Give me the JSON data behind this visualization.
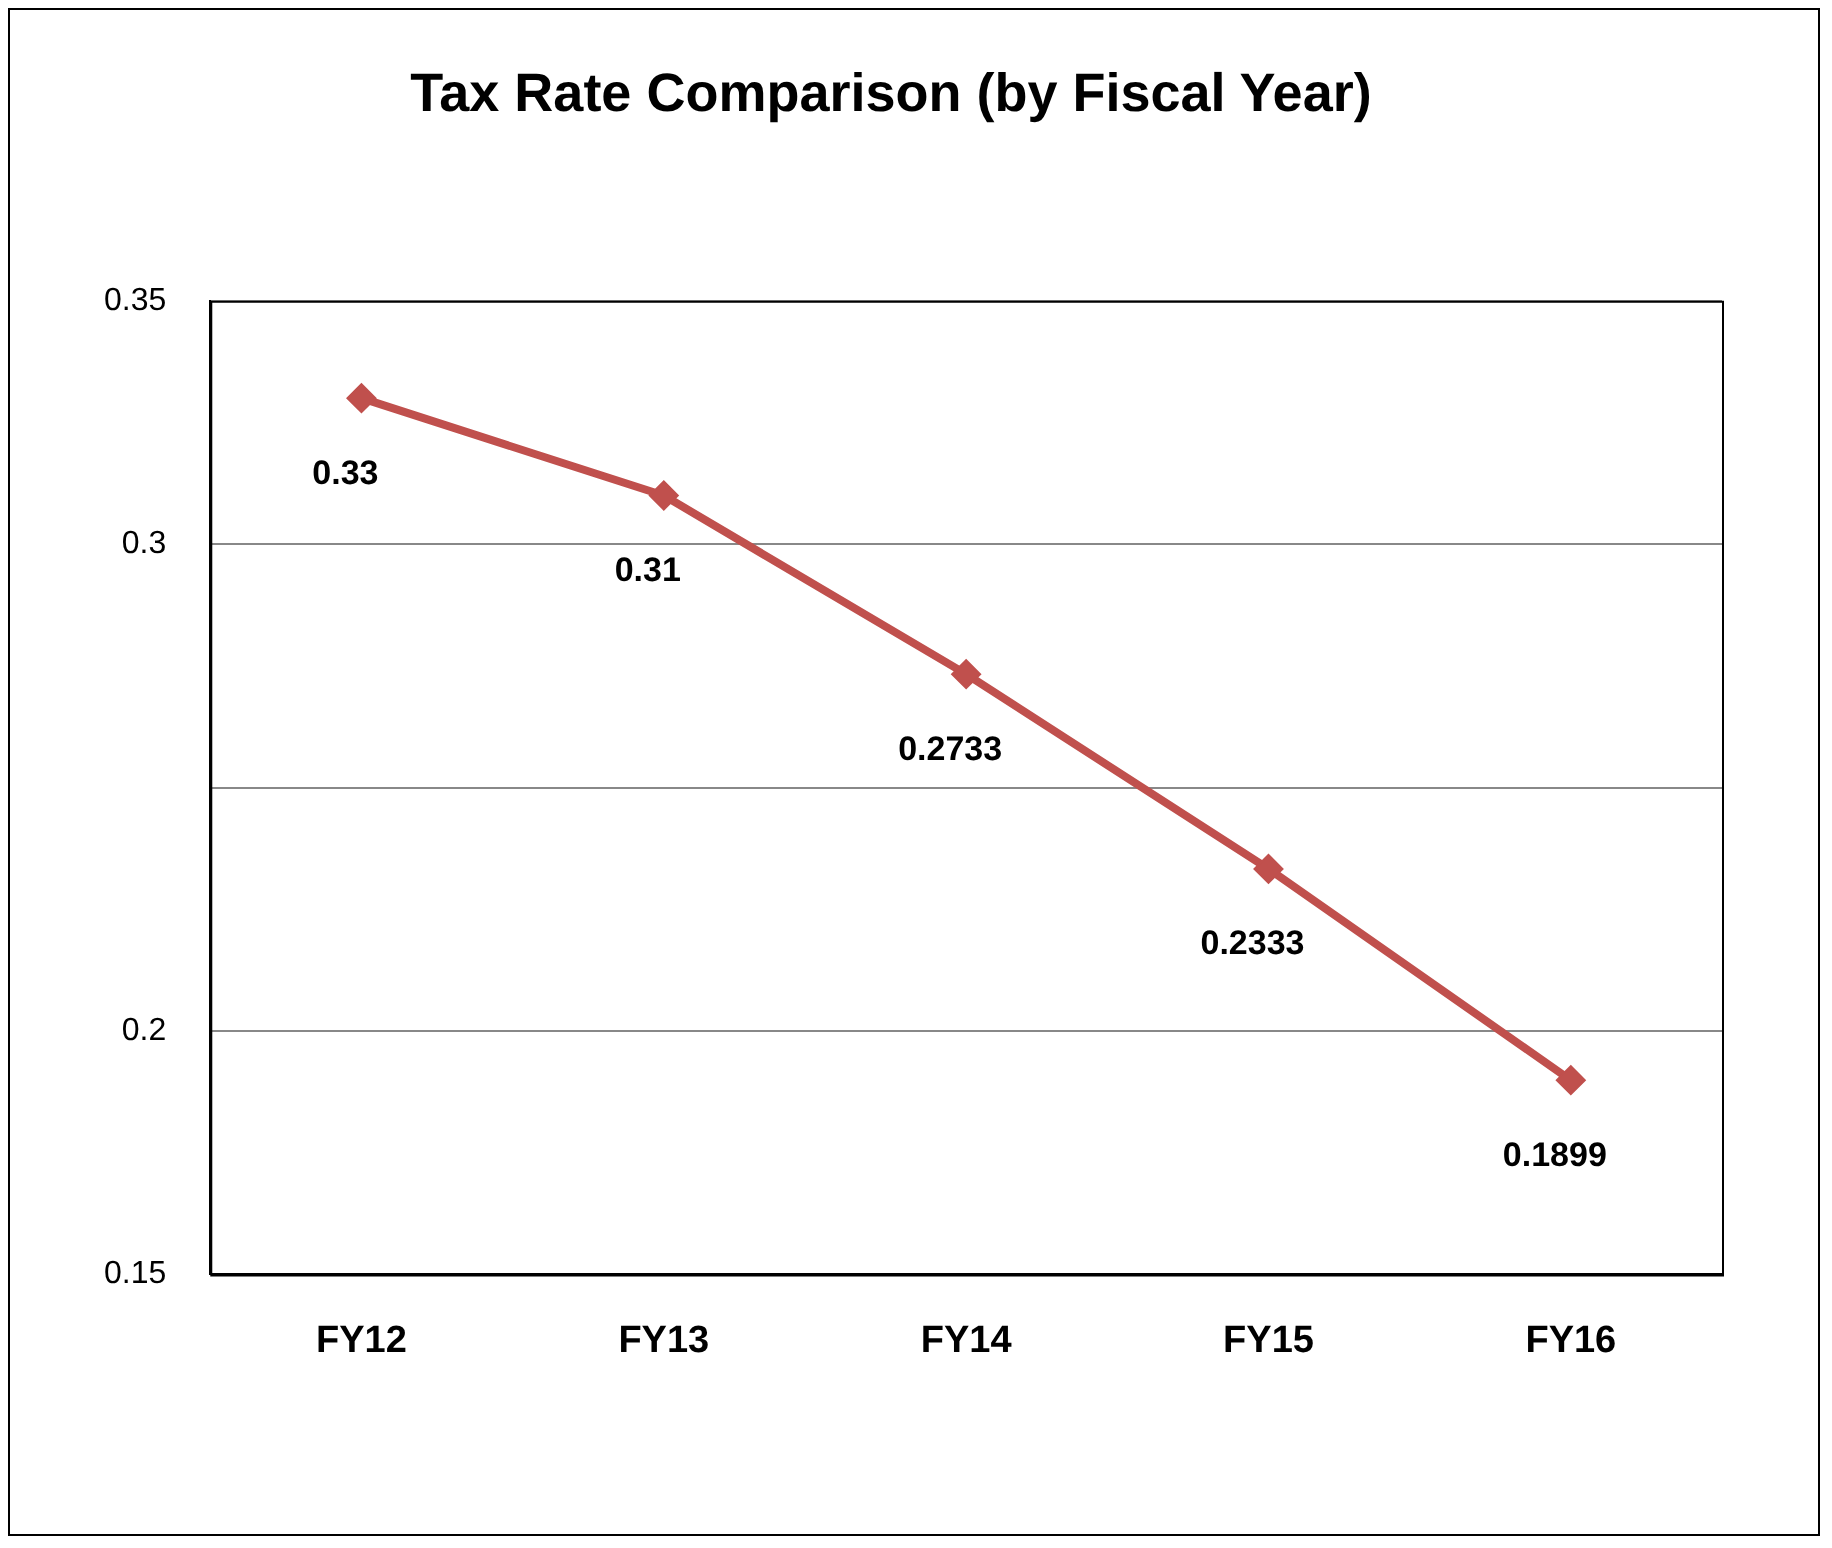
{
  "chart_data": {
    "type": "line",
    "title": "Tax Rate Comparison (by Fiscal Year)",
    "categories": [
      "FY12",
      "FY13",
      "FY14",
      "FY15",
      "FY16"
    ],
    "series": [
      {
        "color": "#c0504d",
        "values": [
          0.33,
          0.31,
          0.2733,
          0.2333,
          0.1899
        ]
      }
    ],
    "ylim": [
      0.15,
      0.35
    ],
    "yticks": [
      0.15,
      0.2,
      {
        "value": 0.25,
        "label": null
      },
      0.3,
      0.35
    ],
    "grid": "y",
    "legend": false,
    "marker": "diamond",
    "line_style": "solid",
    "data_labels": true
  }
}
